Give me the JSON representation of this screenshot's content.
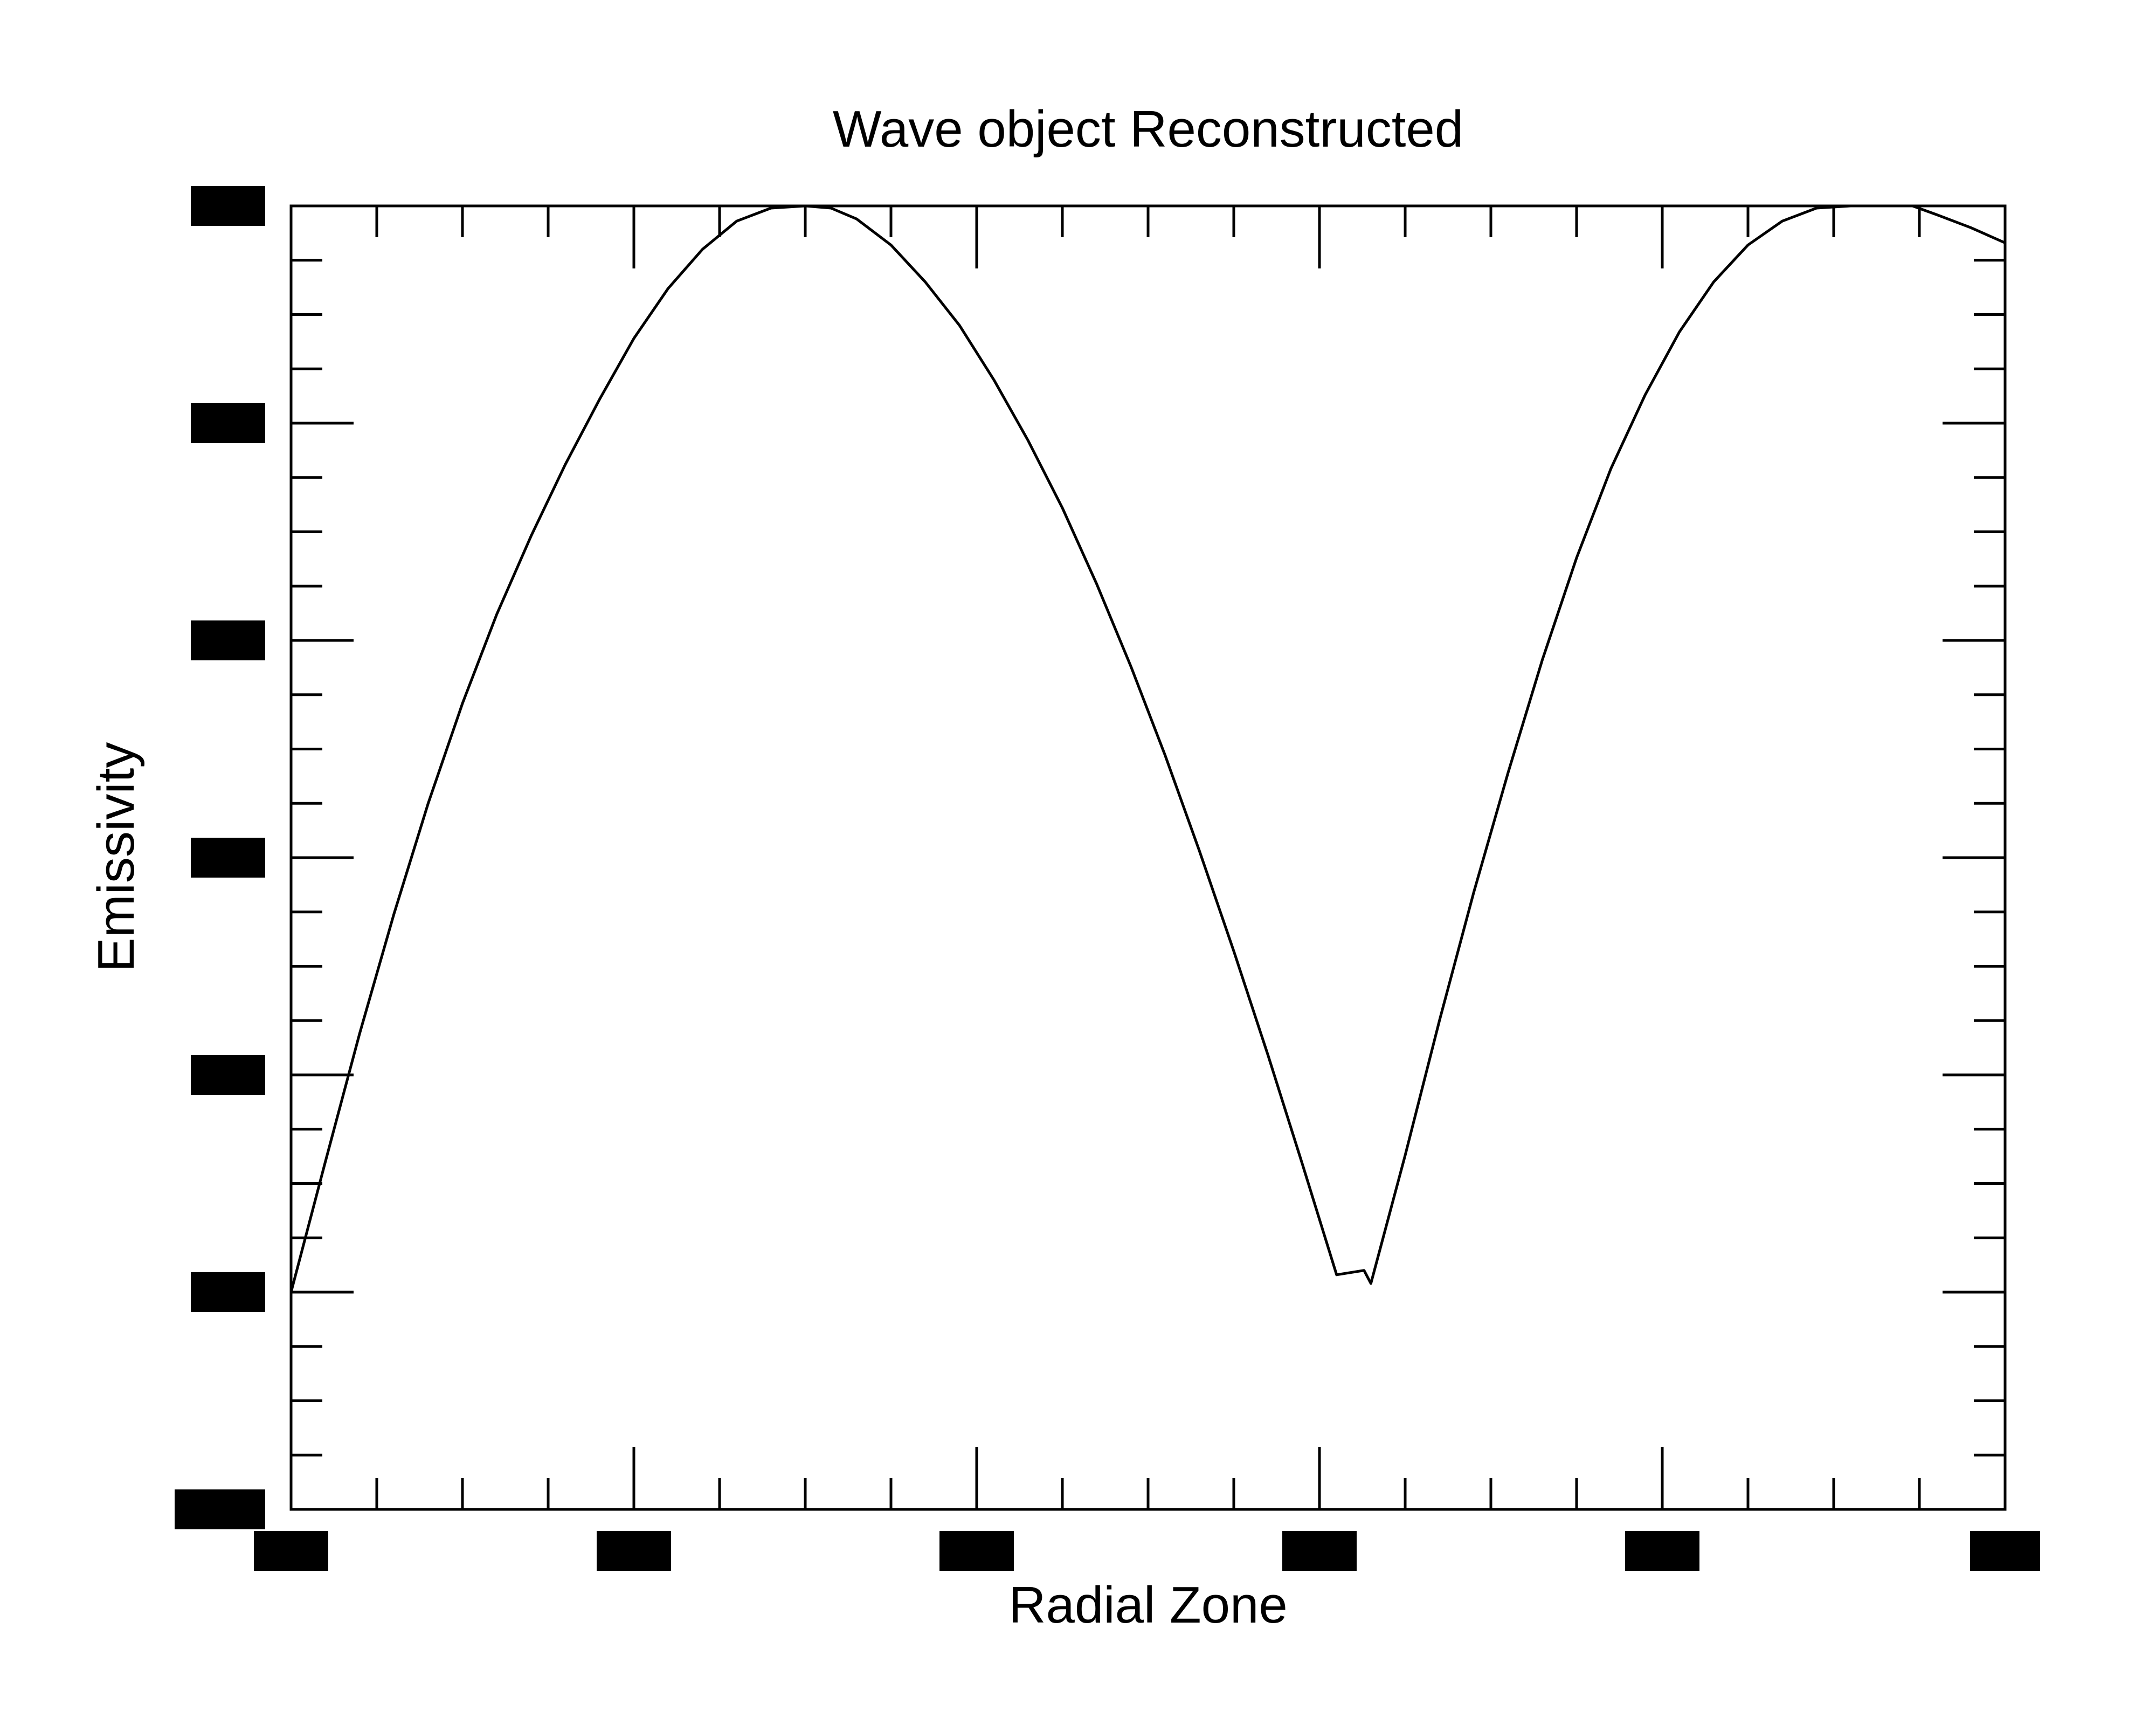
{
  "chart_data": {
    "type": "line",
    "title": "Wave object Reconstructed",
    "xlabel": "Radial Zone",
    "ylabel": "Emissivity",
    "x_tick_labels": [
      "",
      "",
      "",
      "",
      "",
      ""
    ],
    "y_tick_labels": [
      "",
      "",
      "",
      "",
      "",
      "",
      ""
    ],
    "xlim": [
      0,
      100
    ],
    "ylim": [
      0,
      6
    ],
    "x_major_ticks": [
      0,
      20,
      40,
      60,
      80,
      100
    ],
    "y_major_ticks": [
      0,
      1,
      2,
      3,
      4,
      5,
      6
    ],
    "x_minor_tick_step": 5,
    "y_minor_tick_step": 0.25,
    "grid": false,
    "colors": {
      "line": "#000000",
      "axes": "#000000",
      "background": "#ffffff"
    },
    "series": [
      {
        "x": [
          0,
          2,
          4,
          6,
          8,
          10,
          12,
          14,
          16,
          18,
          20,
          22,
          24,
          26,
          28,
          30,
          31.5,
          33,
          35,
          37,
          39,
          41,
          43,
          45,
          47,
          49,
          51,
          53,
          55,
          57,
          59,
          61,
          62.6,
          63.0,
          65,
          67,
          69,
          71,
          73,
          75,
          77,
          79,
          81,
          83,
          85,
          87,
          89,
          91,
          93,
          94.6,
          96,
          98,
          100
        ],
        "y": [
          1.0,
          1.6,
          2.19,
          2.74,
          3.25,
          3.71,
          4.12,
          4.48,
          4.81,
          5.11,
          5.39,
          5.62,
          5.8,
          5.93,
          5.99,
          6.0,
          5.99,
          5.94,
          5.82,
          5.65,
          5.45,
          5.2,
          4.92,
          4.61,
          4.26,
          3.88,
          3.47,
          3.03,
          2.57,
          2.09,
          1.59,
          1.08,
          1.1,
          1.04,
          1.63,
          2.25,
          2.84,
          3.39,
          3.91,
          4.38,
          4.79,
          5.13,
          5.42,
          5.65,
          5.82,
          5.93,
          5.99,
          6.0,
          6.0,
          6.0,
          5.96,
          5.9,
          5.83
        ]
      }
    ]
  }
}
